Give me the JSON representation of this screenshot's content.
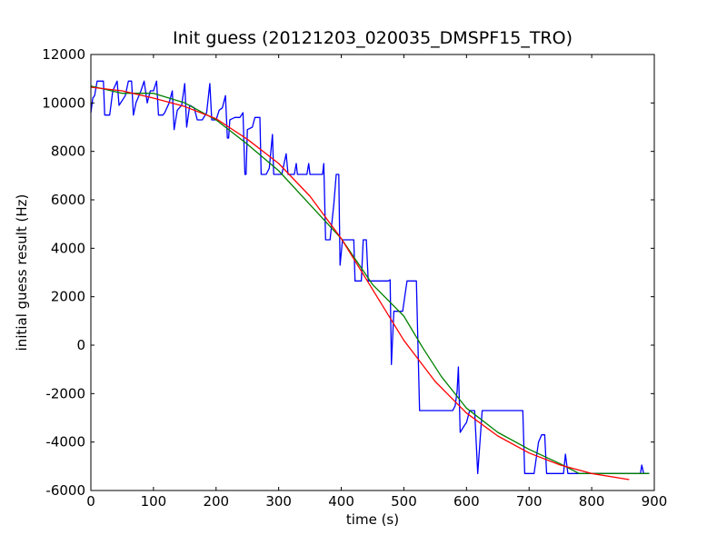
{
  "chart_data": {
    "type": "line",
    "title": "Init guess (20121203_020035_DMSPF15_TRO)",
    "xlabel": "time (s)",
    "ylabel": "initial guess result (Hz)",
    "xlim": [
      0,
      900
    ],
    "ylim": [
      -6000,
      12000
    ],
    "xticks": [
      0,
      100,
      200,
      300,
      400,
      500,
      600,
      700,
      800,
      900
    ],
    "yticks": [
      -6000,
      -4000,
      -2000,
      0,
      2000,
      4000,
      6000,
      8000,
      10000,
      12000
    ],
    "grid": false,
    "legend": "none",
    "series": [
      {
        "color": "#0000ff",
        "points": [
          [
            0,
            9600
          ],
          [
            3,
            10200
          ],
          [
            6,
            10300
          ],
          [
            10,
            10900
          ],
          [
            20,
            10900
          ],
          [
            22,
            9500
          ],
          [
            30,
            9500
          ],
          [
            35,
            10500
          ],
          [
            42,
            10900
          ],
          [
            45,
            9900
          ],
          [
            55,
            10300
          ],
          [
            60,
            10900
          ],
          [
            65,
            10900
          ],
          [
            68,
            9500
          ],
          [
            72,
            10000
          ],
          [
            80,
            10500
          ],
          [
            85,
            10900
          ],
          [
            90,
            10000
          ],
          [
            95,
            10500
          ],
          [
            100,
            10500
          ],
          [
            105,
            10900
          ],
          [
            108,
            9500
          ],
          [
            115,
            9500
          ],
          [
            118,
            9600
          ],
          [
            125,
            10000
          ],
          [
            130,
            10500
          ],
          [
            133,
            8900
          ],
          [
            138,
            9700
          ],
          [
            145,
            9900
          ],
          [
            150,
            10800
          ],
          [
            153,
            9000
          ],
          [
            158,
            9900
          ],
          [
            165,
            9800
          ],
          [
            170,
            9300
          ],
          [
            178,
            9300
          ],
          [
            185,
            9600
          ],
          [
            190,
            10800
          ],
          [
            193,
            9300
          ],
          [
            200,
            9300
          ],
          [
            205,
            9700
          ],
          [
            210,
            9800
          ],
          [
            215,
            10300
          ],
          [
            218,
            8550
          ],
          [
            220,
            8550
          ],
          [
            222,
            9300
          ],
          [
            230,
            9400
          ],
          [
            238,
            9400
          ],
          [
            243,
            9600
          ],
          [
            246,
            7050
          ],
          [
            248,
            7050
          ],
          [
            250,
            8900
          ],
          [
            258,
            9000
          ],
          [
            262,
            9400
          ],
          [
            270,
            9400
          ],
          [
            272,
            7050
          ],
          [
            280,
            7050
          ],
          [
            285,
            7300
          ],
          [
            290,
            8700
          ],
          [
            292,
            7050
          ],
          [
            305,
            7050
          ],
          [
            312,
            7900
          ],
          [
            315,
            7050
          ],
          [
            325,
            7050
          ],
          [
            328,
            7500
          ],
          [
            330,
            7050
          ],
          [
            345,
            7050
          ],
          [
            348,
            7500
          ],
          [
            350,
            7050
          ],
          [
            370,
            7050
          ],
          [
            372,
            7500
          ],
          [
            375,
            4350
          ],
          [
            382,
            4350
          ],
          [
            388,
            5800
          ],
          [
            392,
            7050
          ],
          [
            396,
            7050
          ],
          [
            398,
            3300
          ],
          [
            402,
            4350
          ],
          [
            420,
            4350
          ],
          [
            422,
            2650
          ],
          [
            432,
            2650
          ],
          [
            435,
            4350
          ],
          [
            440,
            4350
          ],
          [
            443,
            2650
          ],
          [
            475,
            2650
          ],
          [
            478,
            2700
          ],
          [
            480,
            -800
          ],
          [
            484,
            1400
          ],
          [
            498,
            1400
          ],
          [
            505,
            2650
          ],
          [
            520,
            2650
          ],
          [
            525,
            -2700
          ],
          [
            578,
            -2700
          ],
          [
            582,
            -2500
          ],
          [
            585,
            -1900
          ],
          [
            587,
            -900
          ],
          [
            590,
            -3600
          ],
          [
            597,
            -3300
          ],
          [
            600,
            -3200
          ],
          [
            605,
            -2700
          ],
          [
            613,
            -2700
          ],
          [
            618,
            -5300
          ],
          [
            625,
            -2700
          ],
          [
            690,
            -2700
          ],
          [
            693,
            -5300
          ],
          [
            708,
            -5300
          ],
          [
            715,
            -4000
          ],
          [
            720,
            -3700
          ],
          [
            725,
            -3700
          ],
          [
            728,
            -5300
          ],
          [
            755,
            -5300
          ],
          [
            758,
            -4500
          ],
          [
            762,
            -5300
          ],
          [
            805,
            -5300
          ],
          [
            808,
            -5300
          ],
          [
            878,
            -5300
          ],
          [
            880,
            -4950
          ],
          [
            883,
            -5300
          ],
          [
            892,
            -5300
          ]
        ]
      },
      {
        "color": "#008000",
        "points": [
          [
            0,
            10700
          ],
          [
            50,
            10400
          ],
          [
            100,
            10400
          ],
          [
            150,
            10000
          ],
          [
            200,
            9300
          ],
          [
            250,
            8300
          ],
          [
            300,
            7200
          ],
          [
            350,
            5800
          ],
          [
            400,
            4400
          ],
          [
            450,
            2500
          ],
          [
            500,
            1200
          ],
          [
            530,
            -100
          ],
          [
            560,
            -1300
          ],
          [
            600,
            -2600
          ],
          [
            650,
            -3600
          ],
          [
            700,
            -4300
          ],
          [
            750,
            -4900
          ],
          [
            780,
            -5300
          ],
          [
            892,
            -5300
          ]
        ]
      },
      {
        "color": "#ff0000",
        "points": [
          [
            0,
            10650
          ],
          [
            50,
            10500
          ],
          [
            100,
            10200
          ],
          [
            150,
            9850
          ],
          [
            200,
            9350
          ],
          [
            250,
            8500
          ],
          [
            300,
            7500
          ],
          [
            350,
            6150
          ],
          [
            400,
            4400
          ],
          [
            450,
            2300
          ],
          [
            500,
            200
          ],
          [
            550,
            -1500
          ],
          [
            600,
            -2800
          ],
          [
            650,
            -3750
          ],
          [
            700,
            -4450
          ],
          [
            750,
            -4950
          ],
          [
            800,
            -5300
          ],
          [
            860,
            -5550
          ]
        ]
      }
    ]
  }
}
